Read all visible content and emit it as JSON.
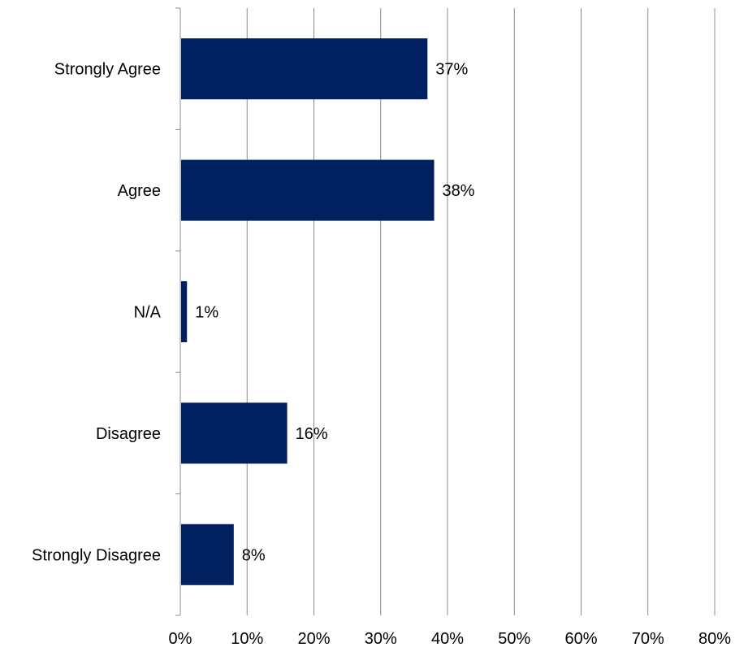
{
  "chart_data": {
    "type": "bar",
    "orientation": "horizontal",
    "categories": [
      "Strongly Agree",
      "Agree",
      "N/A",
      "Disagree",
      "Strongly Disagree"
    ],
    "values": [
      0.37,
      0.38,
      0.01,
      0.16,
      0.08
    ],
    "value_labels": [
      "37%",
      "38%",
      "1%",
      "16%",
      "8%"
    ],
    "xlim": [
      0,
      0.8
    ],
    "x_ticks": [
      0,
      0.1,
      0.2,
      0.3,
      0.4,
      0.5,
      0.6,
      0.7,
      0.8
    ],
    "x_tick_labels": [
      "0%",
      "10%",
      "20%",
      "30%",
      "40%",
      "50%",
      "60%",
      "70%",
      "80%"
    ],
    "title": "",
    "xlabel": "",
    "ylabel": "",
    "grid": "vertical",
    "legend": "none",
    "bar_color": "#002060",
    "grid_color": "#8c8c8c"
  }
}
